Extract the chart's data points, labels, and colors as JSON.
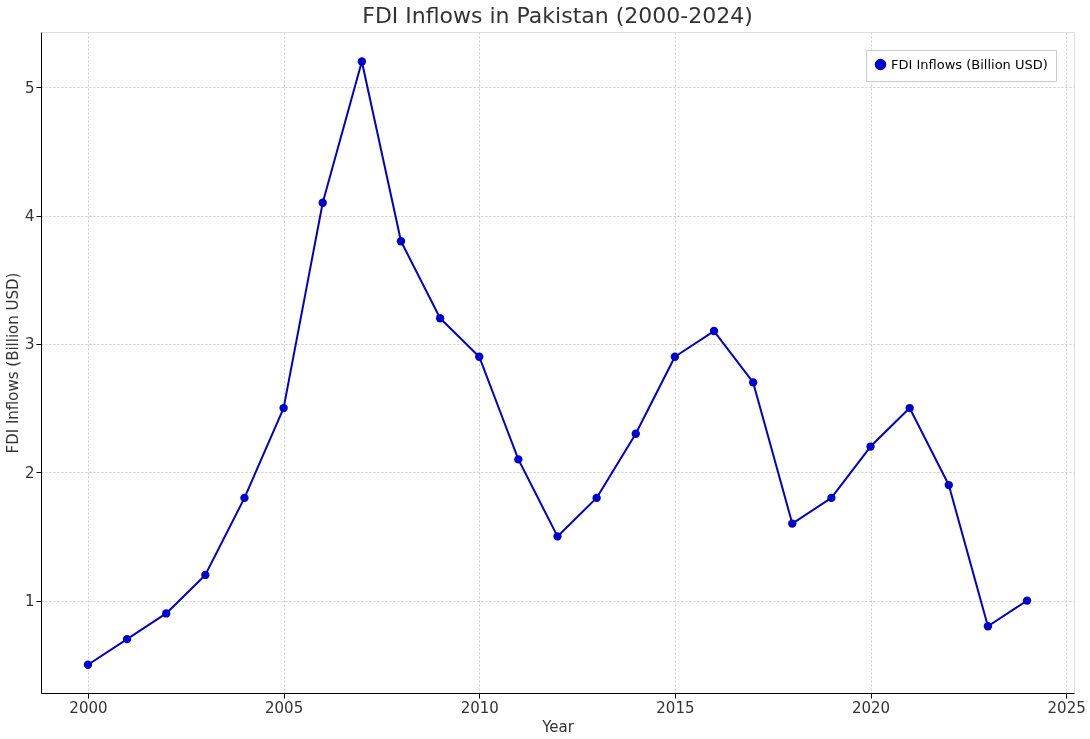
{
  "chart_data": {
    "type": "line",
    "title": "FDI Inflows in Pakistan (2000-2024)",
    "xlabel": "Year",
    "ylabel": "FDI Inflows (Billion USD)",
    "x": [
      2000,
      2001,
      2002,
      2003,
      2004,
      2005,
      2006,
      2007,
      2008,
      2009,
      2010,
      2011,
      2012,
      2013,
      2014,
      2015,
      2016,
      2017,
      2018,
      2019,
      2020,
      2021,
      2022,
      2023,
      2024
    ],
    "series": [
      {
        "name": "FDI Inflows (Billion USD)",
        "color": "#0000cc",
        "values": [
          0.5,
          0.7,
          0.9,
          1.2,
          1.8,
          2.5,
          4.1,
          5.2,
          3.8,
          3.2,
          2.9,
          2.1,
          1.5,
          1.8,
          2.3,
          2.9,
          3.1,
          2.7,
          1.6,
          1.8,
          2.2,
          2.5,
          1.9,
          0.8,
          1.0
        ]
      }
    ],
    "xlim": [
      1998.8,
      2025.2
    ],
    "xticks": [
      2000,
      2005,
      2010,
      2015,
      2020,
      2025
    ],
    "ylim": [
      0.28,
      5.43
    ],
    "yticks": [
      1,
      2,
      3,
      4,
      5
    ],
    "grid": true,
    "legend": "top right",
    "marker": "circle",
    "line_style": "solid"
  }
}
